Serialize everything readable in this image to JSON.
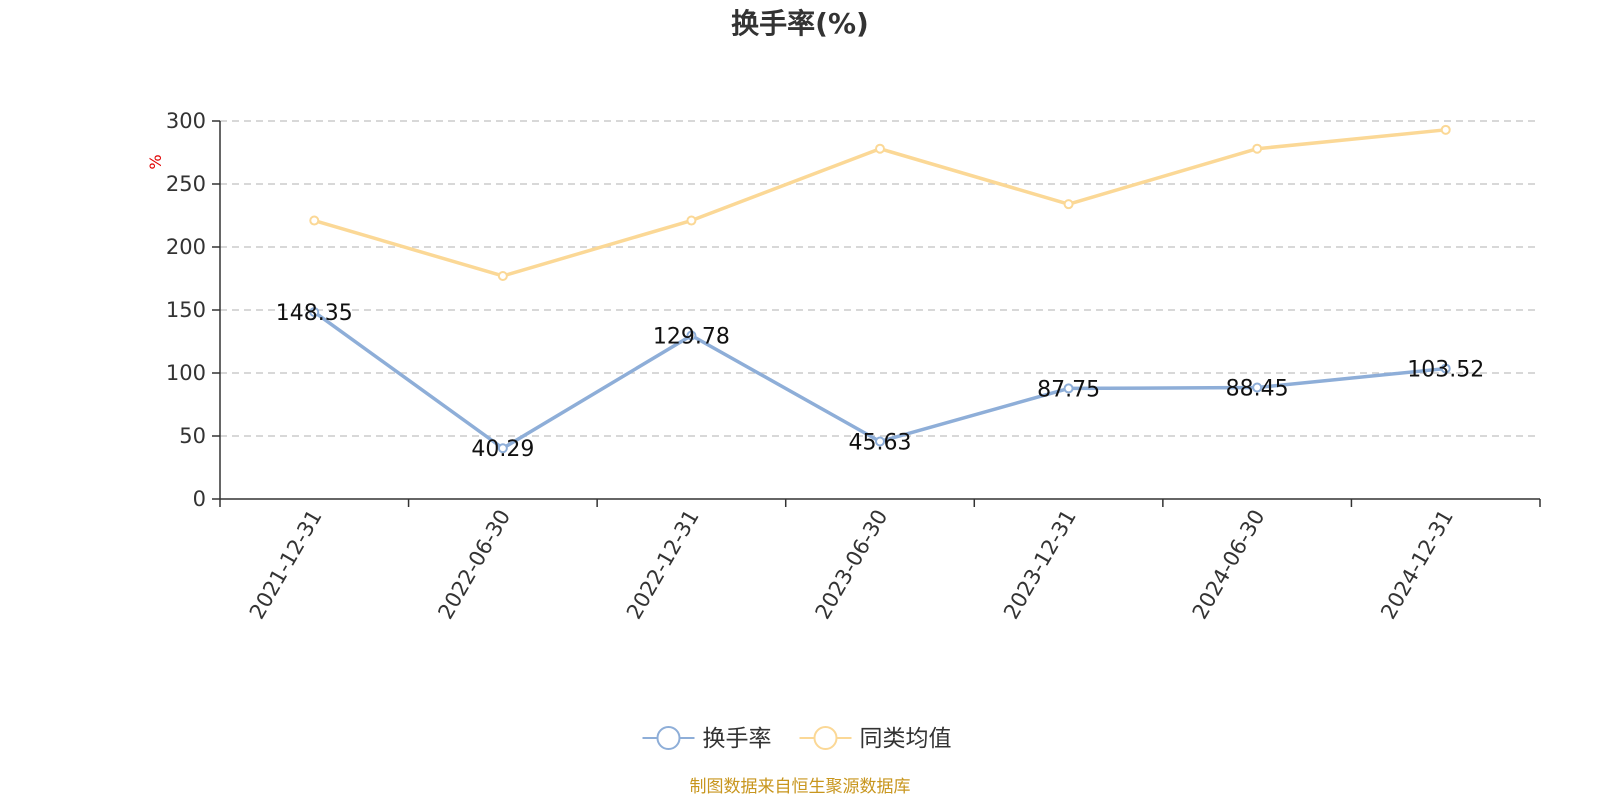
{
  "chart_data": {
    "type": "line",
    "title": "换手率(%)",
    "ylabel": "%",
    "xlabel": "",
    "ylim": [
      0,
      300
    ],
    "yticks": [
      0,
      50,
      100,
      150,
      200,
      250,
      300
    ],
    "categories": [
      "2021-12-31",
      "2022-06-30",
      "2022-12-31",
      "2023-06-30",
      "2023-12-31",
      "2024-06-30",
      "2024-12-31"
    ],
    "series": [
      {
        "name": "换手率",
        "color": "#8eaed8",
        "values": [
          148.35,
          40.29,
          129.78,
          45.63,
          87.75,
          88.45,
          103.52
        ],
        "labels": [
          "148.35",
          "40.29",
          "129.78",
          "45.63",
          "87.75",
          "88.45",
          "103.52"
        ]
      },
      {
        "name": "同类均值",
        "color": "#fbd896",
        "values": [
          221,
          177,
          221,
          278,
          234,
          278,
          293
        ]
      }
    ],
    "grid": true,
    "legend": "bottom-center"
  },
  "footer": "制图数据来自恒生聚源数据库"
}
